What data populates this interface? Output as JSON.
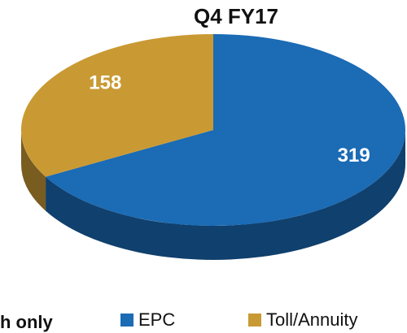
{
  "chart_data": {
    "type": "pie",
    "title": "Q4 FY17",
    "categories": [
      "EPC",
      "Toll/Annuity"
    ],
    "values": [
      319,
      158
    ],
    "colors": [
      "#1b6bb5",
      "#c99a33"
    ],
    "legend": "bottom",
    "annotation": "h only"
  }
}
